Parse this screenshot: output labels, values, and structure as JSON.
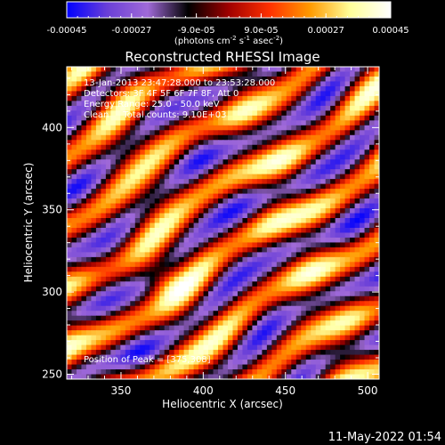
{
  "chart_data": {
    "type": "heatmap",
    "title": "Reconstructed RHESSI Image",
    "xlabel": "Heliocentric X (arcsec)",
    "ylabel": "Heliocentric Y (arcsec)",
    "xlim": [
      317,
      507
    ],
    "ylim": [
      247,
      437
    ],
    "x_ticks": [
      350,
      400,
      450,
      500
    ],
    "y_ticks": [
      250,
      300,
      350,
      400
    ],
    "colorbar": {
      "range": [
        -0.00045,
        0.00045
      ],
      "tick_labels": [
        "-0.00045",
        "-0.00027",
        "-9.0e-05",
        "9.0e-05",
        "0.00027",
        "0.00045"
      ],
      "unit_label": "(photons cm",
      "unit_exp1": "-2",
      "unit_mid": " s",
      "unit_exp2": "-1",
      "unit_tail": " asec",
      "unit_exp3": "-2",
      "unit_close": ")"
    },
    "annotations": {
      "time_range": "13-Jan-2013 23:47:28.000 to 23:53:28.000",
      "detectors": "Detectors: 3F 4F 5F 6F 7F 8F, Att 0",
      "energy": "Energy Range: 25.0 - 50.0 keV",
      "clean": "Clean     Total counts: 9.10E+03",
      "peak": "Position of Peak = [375,308]"
    },
    "peak": [
      375,
      308
    ],
    "stripe_angle_deg": -32,
    "grid": false
  },
  "footer": {
    "timestamp": "11-May-2022 01:54"
  },
  "colors": {
    "background": "#000000",
    "foreground": "#ffffff",
    "colormap": [
      "#0000ff",
      "#6a3fd8",
      "#a06ad8",
      "#000000",
      "#a00000",
      "#ff3000",
      "#ff9a00",
      "#ffff9a",
      "#ffffff"
    ]
  }
}
